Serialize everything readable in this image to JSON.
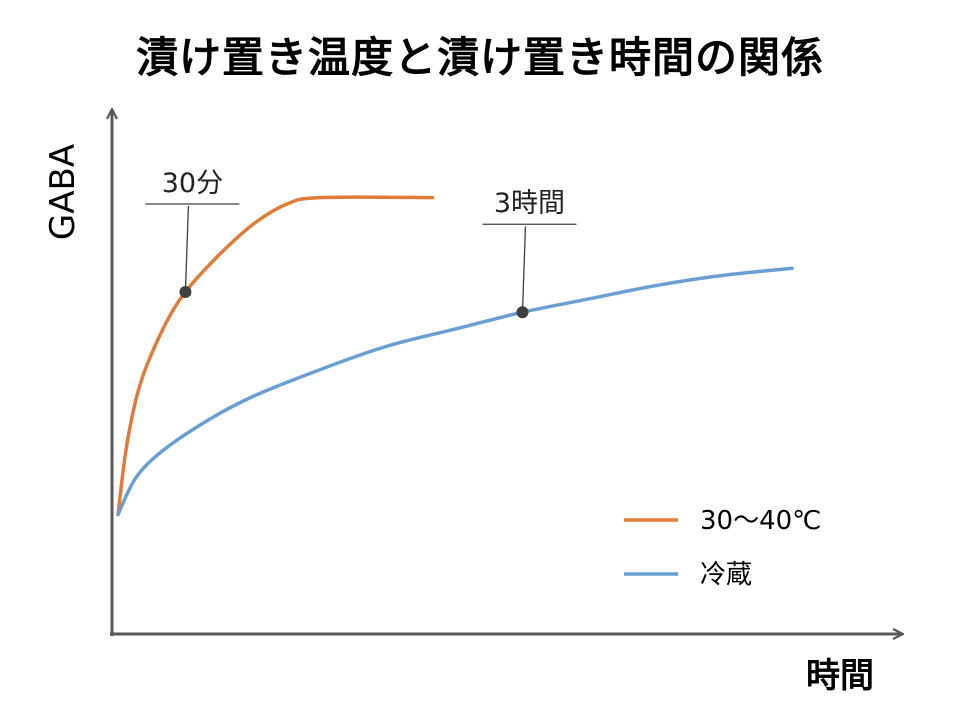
{
  "chart_data": {
    "type": "line",
    "title": "漬け置き温度と漬け置き時間の関係",
    "xlabel": "時間",
    "ylabel": "GABA",
    "legend_position": "bottom-right",
    "series": [
      {
        "name": "30～40℃",
        "color": "#E07B39",
        "points": [
          [
            0,
            0.06
          ],
          [
            4,
            0.27
          ],
          [
            10,
            0.45
          ],
          [
            20,
            0.61
          ],
          [
            30,
            0.72
          ],
          [
            45,
            0.83
          ],
          [
            60,
            0.92
          ],
          [
            75,
            0.98
          ],
          [
            90,
            1.0
          ],
          [
            140,
            1.0
          ]
        ]
      },
      {
        "name": "冷蔵",
        "color": "#6A9FD4",
        "points": [
          [
            0,
            0.06
          ],
          [
            8,
            0.17
          ],
          [
            20,
            0.25
          ],
          [
            40,
            0.34
          ],
          [
            60,
            0.41
          ],
          [
            90,
            0.49
          ],
          [
            120,
            0.56
          ],
          [
            150,
            0.61
          ],
          [
            180,
            0.66
          ],
          [
            210,
            0.7
          ],
          [
            240,
            0.74
          ],
          [
            270,
            0.77
          ],
          [
            300,
            0.79
          ]
        ]
      }
    ],
    "annotations": [
      {
        "label": "30分",
        "series": 0,
        "x": 30,
        "y": 0.72
      },
      {
        "label": "3時間",
        "series": 1,
        "x": 180,
        "y": 0.66
      }
    ],
    "xlim": [
      0,
      340
    ],
    "ylim": [
      -0.3,
      1.23
    ],
    "grid": false,
    "axis_color": "#595959",
    "annotation_color": "#404040"
  }
}
